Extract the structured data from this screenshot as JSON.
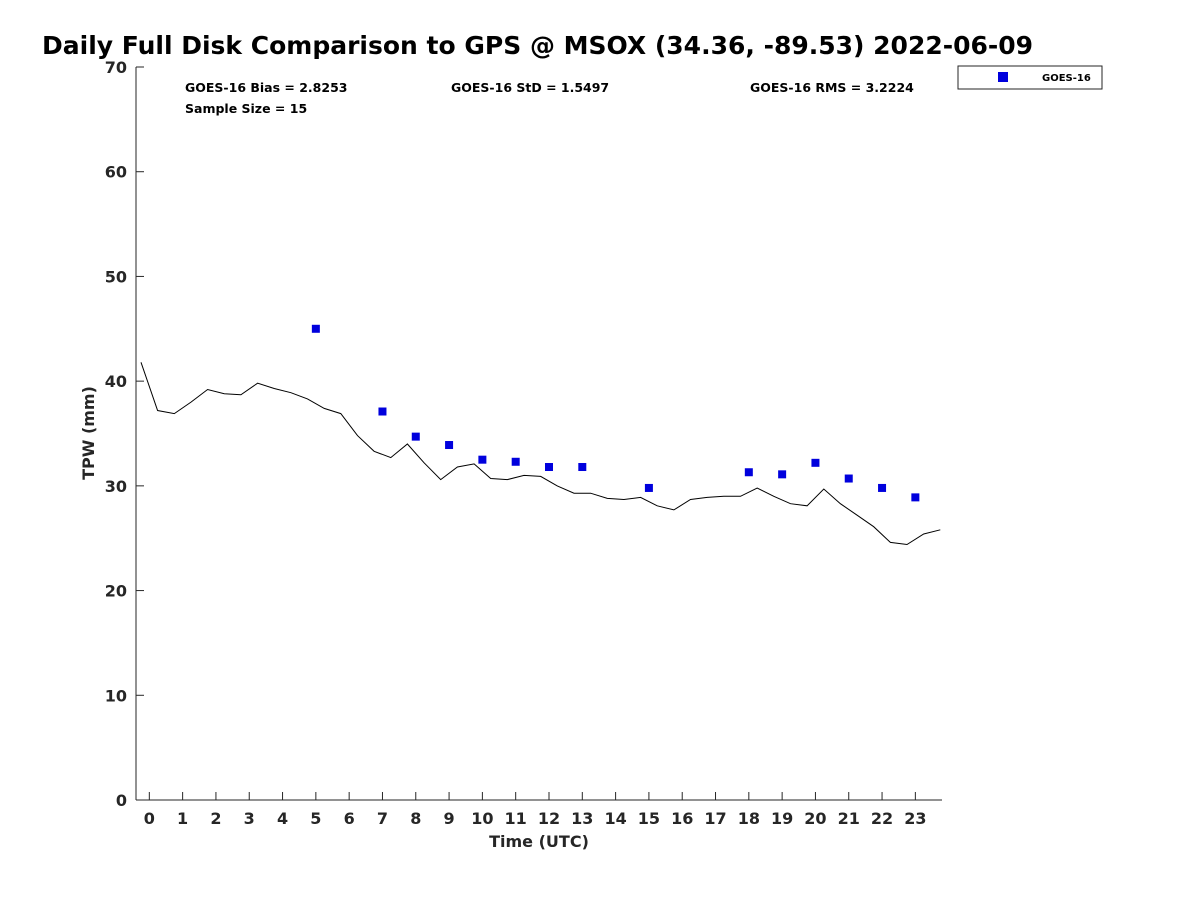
{
  "colors": {
    "series": "#0000dd",
    "line": "#000000",
    "axis": "#262626"
  },
  "chart_data": {
    "type": "scatter",
    "title": "Daily Full Disk Comparison to GPS @ MSOX (34.36, -89.53) 2022-06-09",
    "xlabel": "Time (UTC)",
    "ylabel": "TPW (mm)",
    "xlim": [
      -0.4,
      23.8
    ],
    "ylim": [
      0,
      70
    ],
    "xticks": [
      0,
      1,
      2,
      3,
      4,
      5,
      6,
      7,
      8,
      9,
      10,
      11,
      12,
      13,
      14,
      15,
      16,
      17,
      18,
      19,
      20,
      21,
      22,
      23
    ],
    "yticks": [
      0,
      10,
      20,
      30,
      40,
      50,
      60,
      70
    ],
    "grid": false,
    "legend_position": "top-right outside",
    "stats": {
      "bias": "GOES-16 Bias = 2.8253",
      "std": "GOES-16 StD = 1.5497",
      "rms": "GOES-16 RMS = 3.2224",
      "sample": "Sample Size = 15"
    },
    "series": [
      {
        "name": "GOES-16",
        "type": "scatter",
        "x": [
          5,
          7,
          8,
          9,
          10,
          11,
          12,
          13,
          15,
          18,
          19,
          20,
          21,
          22,
          23
        ],
        "y": [
          45.0,
          37.1,
          34.7,
          33.9,
          32.5,
          32.3,
          31.8,
          31.8,
          29.8,
          31.3,
          31.1,
          32.2,
          30.7,
          29.8,
          28.9
        ]
      },
      {
        "type": "line",
        "x": [
          -0.25,
          0.25,
          0.75,
          1.25,
          1.75,
          2.25,
          2.75,
          3.25,
          3.75,
          4.25,
          4.75,
          5.25,
          5.75,
          6.25,
          6.75,
          7.25,
          7.75,
          8.25,
          8.75,
          9.25,
          9.75,
          10.25,
          10.75,
          11.25,
          11.75,
          12.25,
          12.75,
          13.25,
          13.75,
          14.25,
          14.75,
          15.25,
          15.75,
          16.25,
          16.75,
          17.25,
          17.75,
          18.25,
          18.75,
          19.25,
          19.75,
          20.25,
          20.75,
          21.25,
          21.75,
          22.25,
          22.75,
          23.25,
          23.75
        ],
        "y": [
          41.8,
          37.2,
          36.9,
          38.0,
          39.2,
          38.8,
          38.7,
          39.8,
          39.3,
          38.9,
          38.3,
          37.4,
          36.9,
          34.8,
          33.3,
          32.7,
          34.0,
          32.2,
          30.6,
          31.8,
          32.1,
          30.7,
          30.6,
          31.0,
          30.9,
          30.0,
          29.3,
          29.3,
          28.8,
          28.7,
          28.9,
          28.1,
          27.7,
          28.7,
          28.9,
          29.0,
          29.0,
          29.8,
          29.0,
          28.3,
          28.1,
          29.7,
          28.3,
          27.2,
          26.1,
          24.6,
          24.4,
          25.4,
          25.8
        ]
      }
    ]
  }
}
